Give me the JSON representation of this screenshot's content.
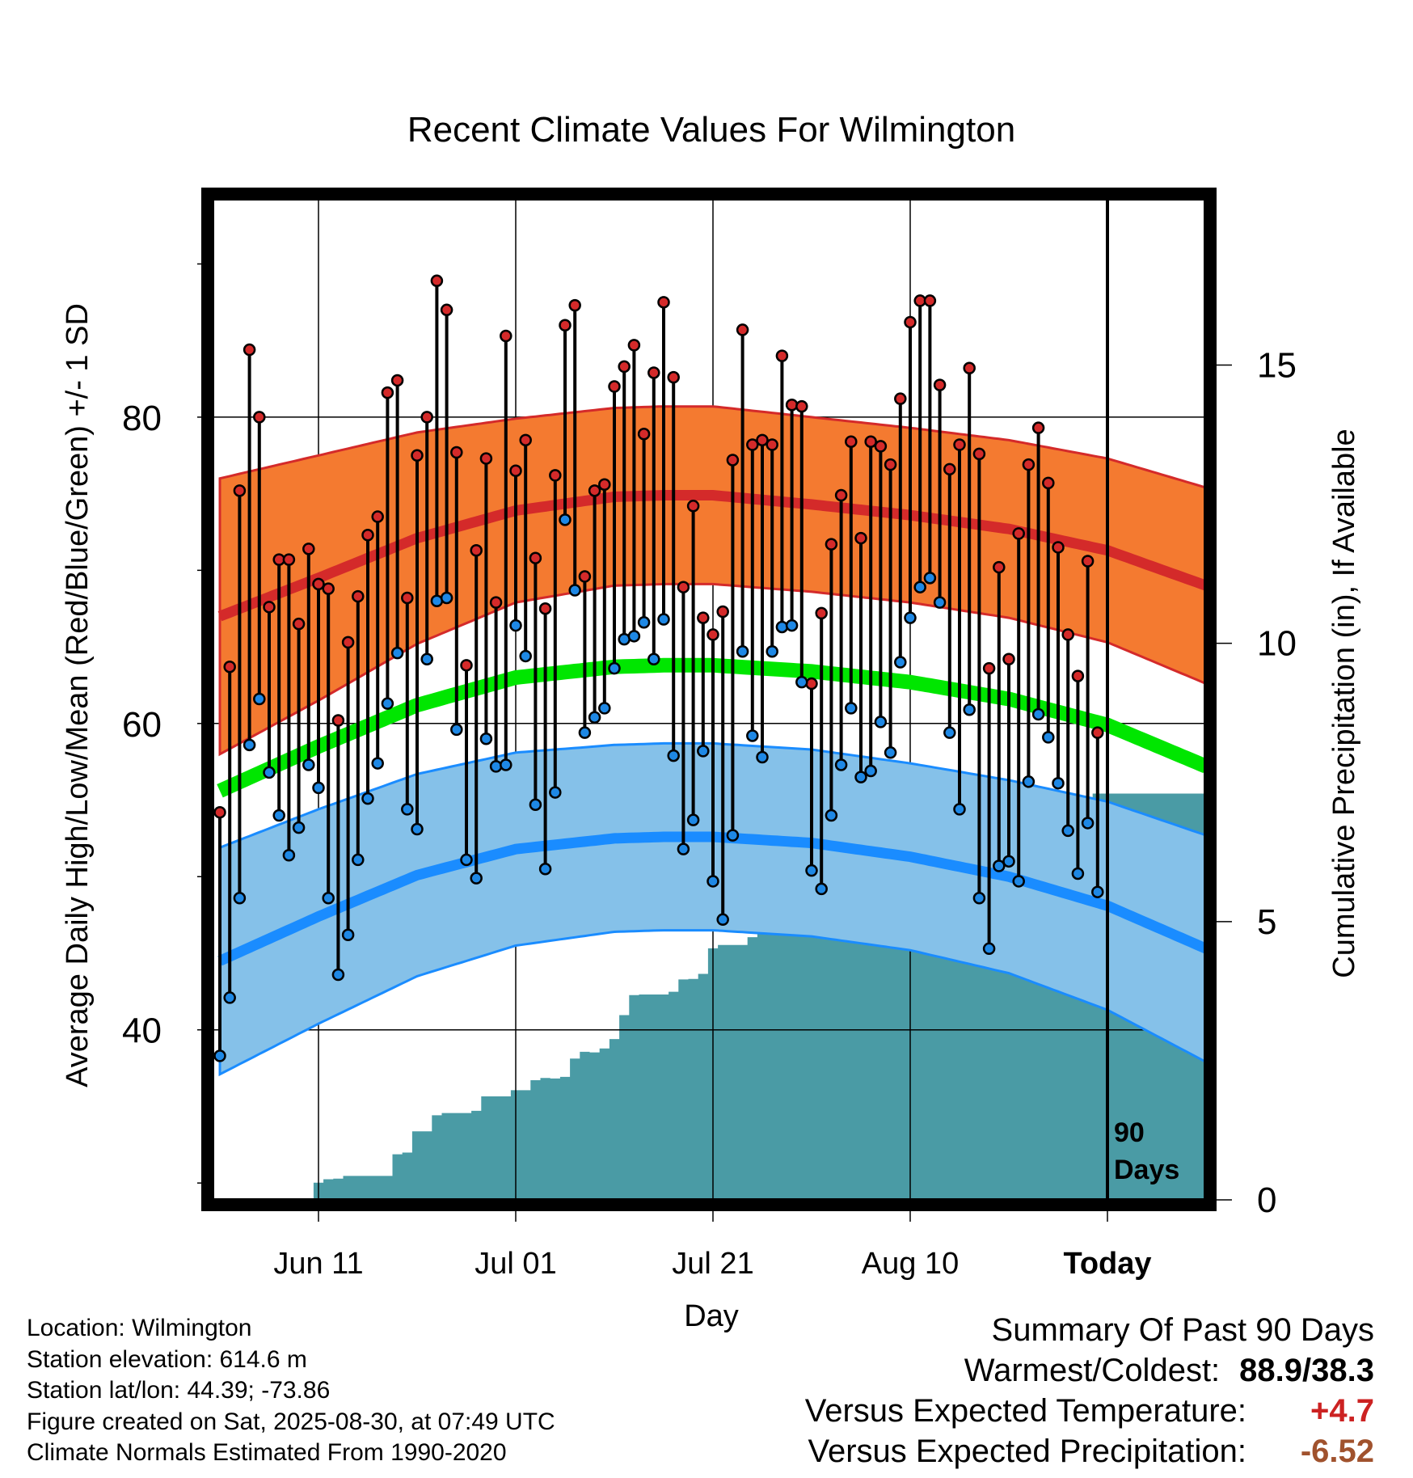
{
  "chart_data": {
    "type": "line",
    "title": "Recent Climate Values For Wilmington",
    "xlabel": "Day",
    "ylabel": "Average Daily High/Low/Mean (Red/Blue/Green) +/- 1 SD",
    "y2label": "Cumulative Precipitation (in), If Available",
    "x_ticks": [
      "Jun 11",
      "Jul 01",
      "Jul 21",
      "Aug 10",
      "Today"
    ],
    "x_tick_days": [
      10,
      30,
      50,
      70,
      90
    ],
    "ylim": [
      28.9,
      94.3
    ],
    "y_ticks": [
      40,
      60,
      80
    ],
    "y2lim": [
      0,
      18
    ],
    "y2_ticks": [
      0,
      5,
      10,
      15
    ],
    "today_label_line1": "90",
    "today_label_line2": "Days",
    "grid": true,
    "colors": {
      "high_normal": "#d42a2a",
      "high_band": "#f47a30",
      "low_normal": "#1a8cff",
      "low_band": "#85c1e9",
      "mean_normal": "#00e600",
      "precip": "#4a9ba5",
      "high_marker": "#d42a2a",
      "low_marker": "#1e88e5"
    },
    "normal_days": [
      0,
      10,
      20,
      30,
      40,
      45,
      50,
      60,
      70,
      80,
      90,
      100
    ],
    "normal_high": [
      67.0,
      69.5,
      72.1,
      73.9,
      74.8,
      74.9,
      74.9,
      74.3,
      73.6,
      72.7,
      71.3,
      69.0
    ],
    "normal_high_sd": [
      9.0,
      8.0,
      6.9,
      6.0,
      5.8,
      5.8,
      5.8,
      5.7,
      5.7,
      5.8,
      6.0,
      6.4
    ],
    "normal_low": [
      44.5,
      47.4,
      50.1,
      51.8,
      52.5,
      52.6,
      52.6,
      52.2,
      51.3,
      50.0,
      48.1,
      45.3
    ],
    "normal_low_sd": [
      7.4,
      7.0,
      6.6,
      6.3,
      6.1,
      6.1,
      6.1,
      6.1,
      6.1,
      6.3,
      6.8,
      7.4
    ],
    "normal_mean": [
      55.6,
      58.5,
      61.2,
      63.0,
      63.7,
      63.8,
      63.8,
      63.4,
      62.7,
      61.6,
      59.9,
      57.2
    ],
    "series": [
      {
        "name": "Daily High",
        "values": [
          54.2,
          63.7,
          75.2,
          84.4,
          80.0,
          67.6,
          70.7,
          70.7,
          66.5,
          71.4,
          69.1,
          68.8,
          60.2,
          65.3,
          68.3,
          72.3,
          73.5,
          81.6,
          82.4,
          68.2,
          77.5,
          80.0,
          88.9,
          87.0,
          77.7,
          63.8,
          71.3,
          77.3,
          67.9,
          85.3,
          76.5,
          78.5,
          70.8,
          67.5,
          76.2,
          86.0,
          87.3,
          69.6,
          75.2,
          75.6,
          82.0,
          83.3,
          84.7,
          78.9,
          82.9,
          87.5,
          82.6,
          68.9,
          74.2,
          66.9,
          65.8,
          67.3,
          77.2,
          85.7,
          78.2,
          78.5,
          78.2,
          84.0,
          80.8,
          80.7,
          62.6,
          67.2,
          71.7,
          74.9,
          78.4,
          72.1,
          78.4,
          78.1,
          76.9,
          81.2,
          86.2,
          87.6,
          87.6,
          82.1,
          76.6,
          78.2,
          83.2,
          77.6,
          63.6,
          70.2,
          64.2,
          72.4,
          76.9,
          79.3,
          75.7,
          71.5,
          65.8,
          63.1,
          70.6,
          59.4
        ]
      },
      {
        "name": "Daily Low",
        "values": [
          38.3,
          42.1,
          48.6,
          58.6,
          61.6,
          56.8,
          54.0,
          51.4,
          53.2,
          57.3,
          55.8,
          48.6,
          43.6,
          46.2,
          51.1,
          55.1,
          57.4,
          61.3,
          64.6,
          54.4,
          53.1,
          64.2,
          68.0,
          68.2,
          59.6,
          51.1,
          49.9,
          59.0,
          57.2,
          57.3,
          66.4,
          64.4,
          54.7,
          50.5,
          55.5,
          73.3,
          68.7,
          59.4,
          60.4,
          61.0,
          63.6,
          65.5,
          65.7,
          66.6,
          64.2,
          66.8,
          57.9,
          51.8,
          53.7,
          58.2,
          49.7,
          47.2,
          52.7,
          64.7,
          59.2,
          57.8,
          64.7,
          66.3,
          66.4,
          62.7,
          50.4,
          49.2,
          54.0,
          57.3,
          61.0,
          56.5,
          56.9,
          60.1,
          58.1,
          64.0,
          66.9,
          68.9,
          69.5,
          67.9,
          59.4,
          54.4,
          60.9,
          48.6,
          45.3,
          50.7,
          51.0,
          49.7,
          56.2,
          60.6,
          59.1,
          56.1,
          53.0,
          50.2,
          53.5,
          49.0
        ]
      },
      {
        "name": "Cumulative Precipitation",
        "values": [
          0,
          0,
          0,
          0,
          0,
          0,
          0,
          0,
          0,
          0.01,
          0.31,
          0.37,
          0.38,
          0.43,
          0.43,
          0.43,
          0.43,
          0.43,
          0.82,
          0.85,
          1.23,
          1.23,
          1.52,
          1.56,
          1.56,
          1.56,
          1.6,
          1.86,
          1.86,
          1.86,
          1.97,
          1.97,
          2.15,
          2.19,
          2.18,
          2.21,
          2.54,
          2.66,
          2.65,
          2.72,
          2.89,
          3.32,
          3.68,
          3.69,
          3.69,
          3.69,
          3.74,
          3.96,
          3.97,
          4.06,
          4.52,
          4.58,
          4.58,
          4.58,
          4.72,
          4.78,
          5.4,
          5.39,
          5.46,
          5.52,
          5.52,
          5.52,
          5.53,
          5.53,
          5.53,
          5.53,
          5.53,
          5.53,
          5.65,
          6.7,
          6.7,
          6.7,
          6.7,
          6.7,
          6.71,
          6.74,
          6.83,
          6.83,
          6.83,
          6.83,
          6.83,
          6.84,
          6.85,
          6.88,
          6.9,
          6.94,
          6.96,
          6.96,
          6.96,
          7.3
        ]
      }
    ]
  },
  "footer": {
    "location": "Location: Wilmington",
    "elevation": "Station elevation: 614.6 m",
    "latlon": "Station lat/lon: 44.39; -73.86",
    "created": "Figure created on Sat, 2025-08-30, at 07:49 UTC",
    "normals": "Climate Normals Estimated From 1990-2020"
  },
  "summary": {
    "heading": "Summary Of Past 90 Days",
    "warm_cold_label": "Warmest/Coldest:",
    "warm_cold_value": "88.9/38.3",
    "temp_label": "Versus Expected Temperature:",
    "temp_value": "+4.7",
    "temp_color": "#cc2222",
    "precip_label": "Versus Expected Precipitation:",
    "precip_value": "-6.52",
    "precip_color": "#a0522d"
  }
}
